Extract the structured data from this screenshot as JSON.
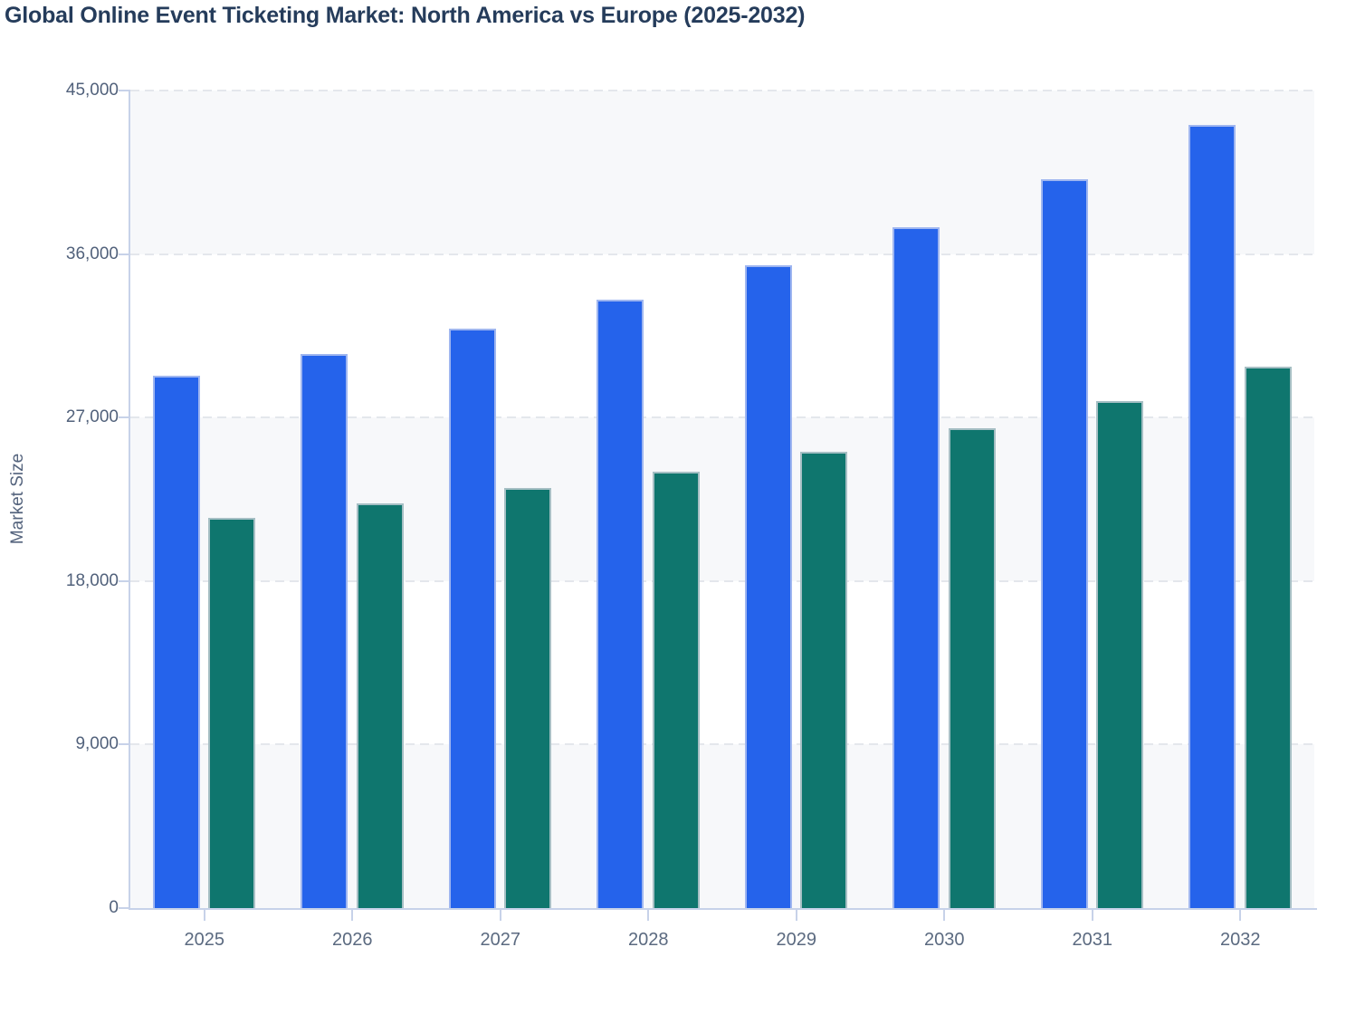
{
  "chart_data": {
    "type": "bar",
    "title": "Global Online Event Ticketing Market: North America vs Europe (2025-2032)",
    "xlabel": "",
    "ylabel": "Market Size",
    "categories": [
      "2025",
      "2026",
      "2027",
      "2028",
      "2029",
      "2030",
      "2031",
      "2032"
    ],
    "series": [
      {
        "name": "North America",
        "color": "#2563eb",
        "border_color": "#9fb6f0",
        "values": [
          29300,
          30500,
          31900,
          33500,
          35400,
          37500,
          40100,
          43100
        ]
      },
      {
        "name": "Europe",
        "color": "#0f766e",
        "border_color": "#a6bfc4",
        "values": [
          21500,
          22300,
          23100,
          24000,
          25100,
          26400,
          27900,
          29800
        ]
      }
    ],
    "ylim": [
      0,
      45000
    ],
    "ytick_labels": [
      "0",
      "9,000",
      "18,000",
      "27,000",
      "36,000",
      "45,000"
    ],
    "legend": "none",
    "grid": "horizontal-dashed",
    "band_fill_alternating": [
      "#f7f8fa",
      "#ffffff"
    ],
    "axis_line_color": "#c7d2e9",
    "grid_color": "#e4e7ec",
    "title_color": "#253c5b",
    "tick_label_color": "#51617b"
  }
}
